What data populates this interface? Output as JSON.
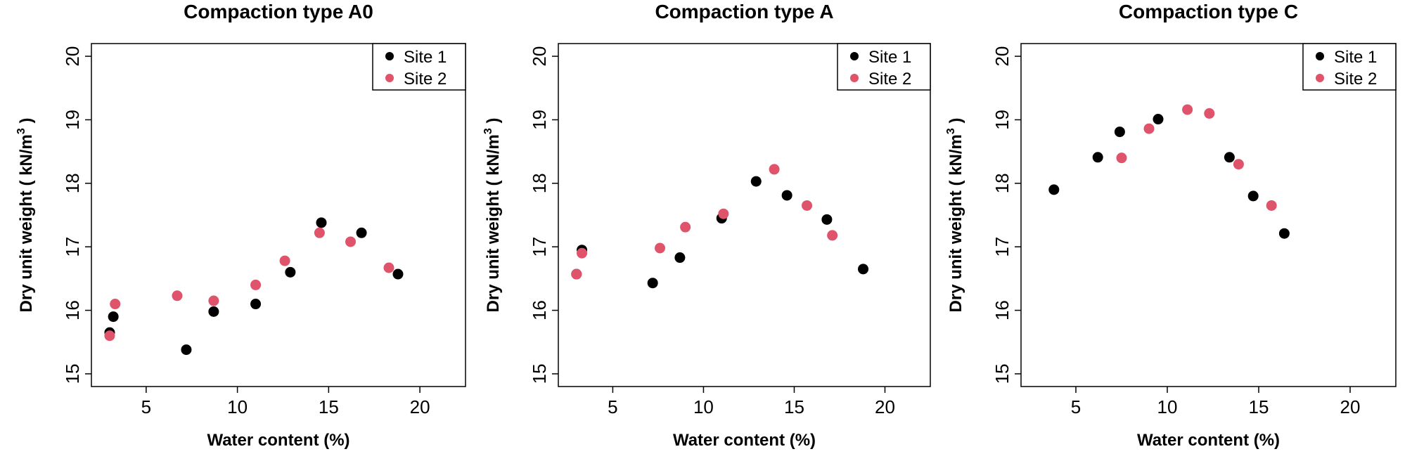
{
  "colors": {
    "site1": "#000000",
    "site2": "#df536b"
  },
  "chart_data": [
    {
      "type": "scatter",
      "title": "Compaction type A0",
      "xlabel": "Water content (%)",
      "ylabel": "Dry unit weight ( kN/m",
      "ylabel_sup": "3",
      "ylabel_close": ")",
      "xlim": [
        2,
        22.5
      ],
      "ylim": [
        14.8,
        20.2
      ],
      "xticks": [
        5,
        10,
        15,
        20
      ],
      "yticks": [
        15,
        16,
        17,
        18,
        19,
        20
      ],
      "legend_position": "top-right",
      "series": [
        {
          "name": "Site 1",
          "color": "#000000",
          "x": [
            3.0,
            3.2,
            7.2,
            8.7,
            11.0,
            12.9,
            14.6,
            16.8,
            18.8
          ],
          "y": [
            15.65,
            15.9,
            15.38,
            15.98,
            16.1,
            16.6,
            17.38,
            17.22,
            16.57
          ]
        },
        {
          "name": "Site 2",
          "color": "#df536b",
          "x": [
            3.0,
            3.3,
            6.7,
            8.7,
            11.0,
            12.6,
            14.5,
            16.2,
            18.3
          ],
          "y": [
            15.6,
            16.1,
            16.23,
            16.15,
            16.4,
            16.78,
            17.22,
            17.08,
            16.67
          ]
        }
      ]
    },
    {
      "type": "scatter",
      "title": "Compaction type A",
      "xlabel": "Water content (%)",
      "ylabel": "Dry unit weight ( kN/m",
      "ylabel_sup": "3",
      "ylabel_close": ")",
      "xlim": [
        2,
        22.5
      ],
      "ylim": [
        14.8,
        20.2
      ],
      "xticks": [
        5,
        10,
        15,
        20
      ],
      "yticks": [
        15,
        16,
        17,
        18,
        19,
        20
      ],
      "legend_position": "top-right",
      "series": [
        {
          "name": "Site 1",
          "color": "#000000",
          "x": [
            3.0,
            3.3,
            7.2,
            8.7,
            11.0,
            12.9,
            14.6,
            16.8,
            18.8
          ],
          "y": [
            16.57,
            16.95,
            16.43,
            16.83,
            17.45,
            18.03,
            17.81,
            17.43,
            16.65
          ]
        },
        {
          "name": "Site 2",
          "color": "#df536b",
          "x": [
            3.0,
            3.3,
            7.6,
            9.0,
            11.1,
            13.9,
            15.7,
            17.1
          ],
          "y": [
            16.57,
            16.9,
            16.98,
            17.31,
            17.52,
            18.22,
            17.65,
            17.18
          ]
        }
      ]
    },
    {
      "type": "scatter",
      "title": "Compaction type C",
      "xlabel": "Water content (%)",
      "ylabel": "Dry unit weight ( kN/m",
      "ylabel_sup": "3",
      "ylabel_close": ")",
      "xlim": [
        2,
        22.5
      ],
      "ylim": [
        14.8,
        20.2
      ],
      "xticks": [
        5,
        10,
        15,
        20
      ],
      "yticks": [
        15,
        16,
        17,
        18,
        19,
        20
      ],
      "legend_position": "top-right",
      "series": [
        {
          "name": "Site 1",
          "color": "#000000",
          "x": [
            3.8,
            6.2,
            7.4,
            9.5,
            13.4,
            14.7,
            16.4
          ],
          "y": [
            17.9,
            18.41,
            18.81,
            19.01,
            18.41,
            17.8,
            17.21
          ]
        },
        {
          "name": "Site 2",
          "color": "#df536b",
          "x": [
            7.5,
            9.0,
            11.1,
            12.3,
            13.9,
            15.7
          ],
          "y": [
            18.4,
            18.86,
            19.16,
            19.1,
            18.3,
            17.65
          ]
        }
      ]
    }
  ]
}
